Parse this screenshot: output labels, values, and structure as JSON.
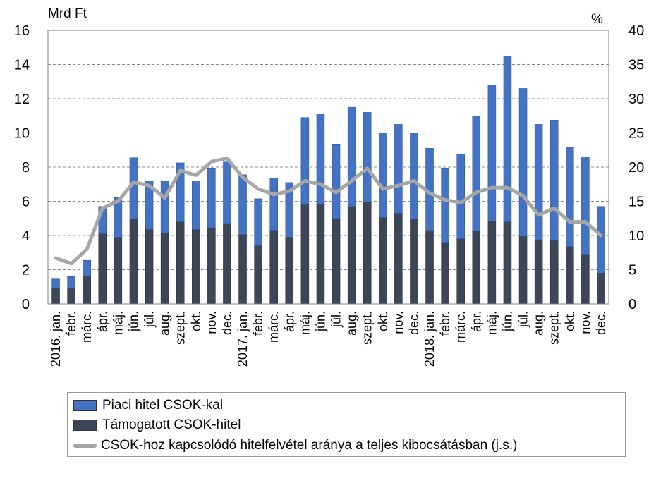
{
  "chart_data": {
    "type": "bar",
    "stacked": true,
    "left_unit_label": "Mrd Ft",
    "right_unit_label": "%",
    "ylim_left": [
      0,
      16
    ],
    "yticks_left": [
      0,
      2,
      4,
      6,
      8,
      10,
      12,
      14,
      16
    ],
    "ylim_right": [
      0,
      40
    ],
    "yticks_right": [
      0,
      5,
      10,
      15,
      20,
      25,
      30,
      35,
      40
    ],
    "grid": true,
    "legend_position": "bottom",
    "categories": [
      "2016. jan.",
      "febr.",
      "márc.",
      "ápr.",
      "máj.",
      "jún.",
      "júl.",
      "aug.",
      "szept.",
      "okt.",
      "nov.",
      "dec.",
      "2017. jan.",
      "febr.",
      "márc.",
      "ápr.",
      "máj.",
      "jún.",
      "júl.",
      "aug.",
      "szept.",
      "okt.",
      "nov.",
      "dec.",
      "2018. jan.",
      "febr.",
      "márc.",
      "ápr.",
      "máj.",
      "jún.",
      "júl.",
      "aug.",
      "szept.",
      "okt.",
      "nov.",
      "dec."
    ],
    "series": [
      {
        "name": "Támogatott CSOK-hitel",
        "kind": "bar",
        "axis": "left",
        "color": "#3d4657",
        "values": [
          0.9,
          0.9,
          1.6,
          4.1,
          3.9,
          4.95,
          4.35,
          4.15,
          4.8,
          4.35,
          4.45,
          4.7,
          4.05,
          3.4,
          4.3,
          3.9,
          5.8,
          5.8,
          5.0,
          5.7,
          5.95,
          5.05,
          5.3,
          4.95,
          4.3,
          3.6,
          3.8,
          4.25,
          4.85,
          4.8,
          3.95,
          3.75,
          3.7,
          3.35,
          2.9,
          1.8
        ]
      },
      {
        "name": "Piaci hitel CSOK-kal",
        "kind": "bar",
        "axis": "left",
        "color": "#4472c4",
        "values": [
          0.6,
          0.7,
          0.95,
          1.6,
          2.35,
          3.6,
          2.85,
          3.05,
          3.45,
          2.85,
          3.5,
          3.6,
          3.5,
          2.75,
          3.05,
          3.2,
          5.1,
          5.3,
          4.35,
          5.8,
          5.25,
          4.95,
          5.2,
          5.05,
          4.8,
          4.35,
          4.95,
          6.75,
          7.95,
          9.7,
          8.65,
          6.75,
          7.05,
          5.8,
          5.7,
          3.9
        ]
      },
      {
        "name": "CSOK-hoz kapcsolódó hitelfelvétel aránya a teljes kibocsátásban (j.s.)",
        "kind": "line",
        "axis": "right",
        "color": "#a6a6a6",
        "values": [
          6.7,
          5.9,
          8.0,
          14.0,
          15.0,
          17.8,
          17.3,
          15.5,
          19.5,
          18.8,
          20.8,
          21.3,
          18.5,
          16.8,
          16.0,
          16.5,
          18.0,
          17.5,
          16.3,
          18.0,
          19.8,
          16.8,
          17.3,
          18.0,
          16.2,
          15.2,
          14.8,
          16.3,
          17.0,
          17.0,
          15.8,
          13.0,
          14.0,
          12.0,
          12.0,
          10.0
        ]
      }
    ]
  }
}
